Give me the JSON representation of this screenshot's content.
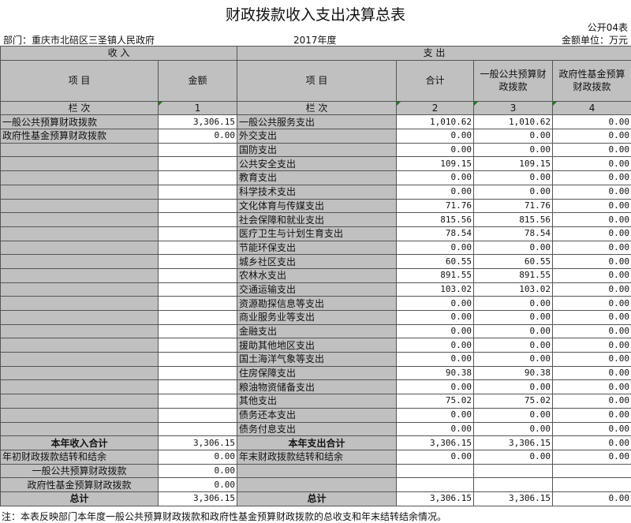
{
  "title": "财政拨款收入支出决算总表",
  "form_no": "公开04表",
  "department": "部门：重庆市北碚区三圣镇人民政府",
  "year": "2017年度",
  "unit": "金额单位：万元",
  "header": {
    "income": "收        入",
    "expense": "支        出",
    "item": "项            目",
    "amount": "金额",
    "total": "合计",
    "general": "一般公共预算财政拨款",
    "fund": "政府性基金预算财政拨款",
    "row_no": "栏            次",
    "col1": "1",
    "col2": "2",
    "col3": "3",
    "col4": "4"
  },
  "income_rows": [
    {
      "label": "一般公共预算财政拨款",
      "amount": "3,306.15"
    },
    {
      "label": "政府性基金预算财政拨款",
      "amount": "0.00"
    }
  ],
  "expense_rows": [
    [
      "一般公共服务支出",
      "1,010.62",
      "1,010.62",
      "0.00"
    ],
    [
      "外交支出",
      "0.00",
      "0.00",
      "0.00"
    ],
    [
      "国防支出",
      "0.00",
      "0.00",
      "0.00"
    ],
    [
      "公共安全支出",
      "109.15",
      "109.15",
      "0.00"
    ],
    [
      "教育支出",
      "0.00",
      "0.00",
      "0.00"
    ],
    [
      "科学技术支出",
      "0.00",
      "0.00",
      "0.00"
    ],
    [
      "文化体育与传媒支出",
      "71.76",
      "71.76",
      "0.00"
    ],
    [
      "社会保障和就业支出",
      "815.56",
      "815.56",
      "0.00"
    ],
    [
      "医疗卫生与计划生育支出",
      "78.54",
      "78.54",
      "0.00"
    ],
    [
      "节能环保支出",
      "0.00",
      "0.00",
      "0.00"
    ],
    [
      "城乡社区支出",
      "60.55",
      "60.55",
      "0.00"
    ],
    [
      "农林水支出",
      "891.55",
      "891.55",
      "0.00"
    ],
    [
      "交通运输支出",
      "103.02",
      "103.02",
      "0.00"
    ],
    [
      "资源勘探信息等支出",
      "0.00",
      "0.00",
      "0.00"
    ],
    [
      "商业服务业等支出",
      "0.00",
      "0.00",
      "0.00"
    ],
    [
      "金融支出",
      "0.00",
      "0.00",
      "0.00"
    ],
    [
      "援助其他地区支出",
      "0.00",
      "0.00",
      "0.00"
    ],
    [
      "国土海洋气象等支出",
      "0.00",
      "0.00",
      "0.00"
    ],
    [
      "住房保障支出",
      "90.38",
      "90.38",
      "0.00"
    ],
    [
      "粮油物资储备支出",
      "0.00",
      "0.00",
      "0.00"
    ],
    [
      "其他支出",
      "75.02",
      "75.02",
      "0.00"
    ],
    [
      "债务还本支出",
      "0.00",
      "0.00",
      "0.00"
    ],
    [
      "债务付息支出",
      "0.00",
      "0.00",
      "0.00"
    ]
  ],
  "summary": {
    "income_subtotal_label": "本年收入合计",
    "income_subtotal": "3,306.15",
    "expense_subtotal_label": "本年支出合计",
    "expense_subtotal": [
      "3,306.15",
      "3,306.15",
      "0.00"
    ],
    "begin_label": "年初财政拨款结转和结余",
    "begin_amount": "0.00",
    "end_label": "年末财政拨款结转和结余",
    "end_amount": [
      "0.00",
      "0.00",
      "0.00"
    ],
    "begin_general_label": "一般公共预算财政拨款",
    "begin_general": "0.00",
    "begin_fund_label": "政府性基金预算财政拨款",
    "begin_fund": "0.00",
    "income_total_label": "总计",
    "income_total": "3,306.15",
    "expense_total_label": "总计",
    "expense_total": [
      "3,306.15",
      "3,306.15",
      "0.00"
    ]
  },
  "note": "注：本表反映部门本年度一般公共预算财政拨款和政府性基金预算财政拨款的总收支和年末结转结余情况。"
}
